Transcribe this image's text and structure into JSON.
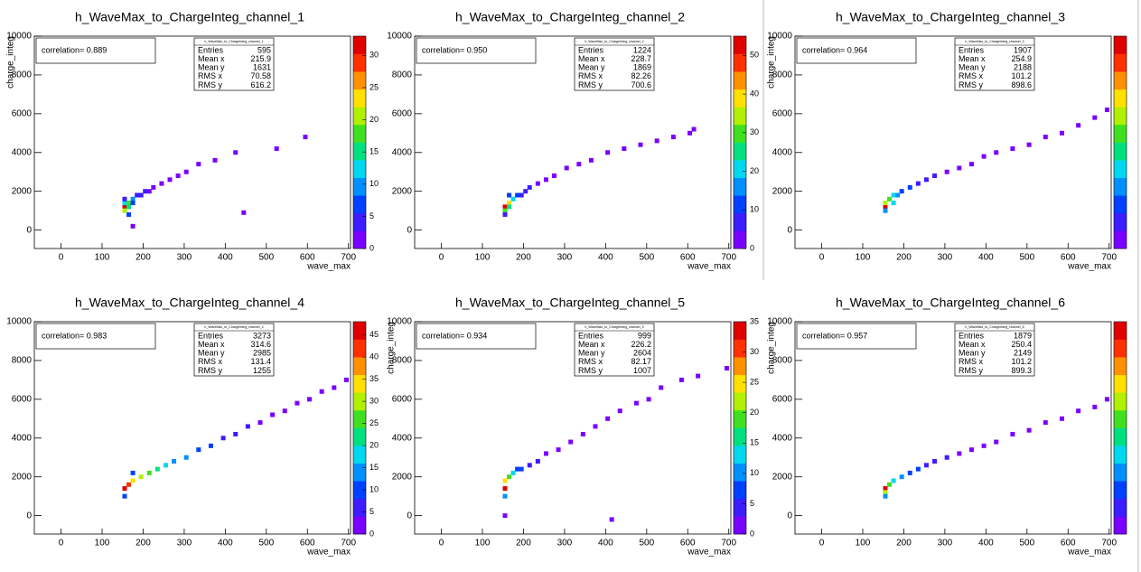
{
  "chart_data": [
    {
      "type": "heatmap",
      "title": "h_WaveMax_to_ChargeInteg_channel_1",
      "xlabel": "wave_max",
      "ylabel": "charge_integ",
      "annotation": "correlation= 0.889",
      "stats": {
        "title": "h_WaveMax_to_ChargeInteg_channel_1",
        "labels": [
          "Entries",
          "Mean x",
          "Mean y",
          "RMS x",
          "RMS y"
        ],
        "values": [
          595,
          215.9,
          1631,
          70.58,
          616.2
        ]
      },
      "xlim": [
        -65,
        705
      ],
      "ylim": [
        -950,
        10000
      ],
      "xticks": [
        0,
        100,
        200,
        300,
        400,
        500,
        600,
        700
      ],
      "yticks": [
        0,
        2000,
        4000,
        6000,
        8000,
        10000
      ],
      "zlim": [
        0,
        33
      ],
      "zticks": [
        0,
        5,
        10,
        15,
        20,
        25,
        30
      ],
      "x": [
        155,
        155,
        155,
        165,
        165,
        175,
        175,
        165,
        185,
        195,
        205,
        215,
        225,
        245,
        265,
        285,
        305,
        335,
        375,
        425,
        445,
        525,
        595,
        155,
        175
      ],
      "y": [
        1200,
        1000,
        1400,
        1400,
        1200,
        1600,
        1400,
        800,
        1800,
        1800,
        2000,
        2000,
        2200,
        2400,
        2600,
        2800,
        3000,
        3400,
        3600,
        4000,
        900,
        4200,
        4800,
        1600,
        200
      ],
      "z": [
        33,
        20,
        12,
        18,
        15,
        10,
        8,
        6,
        5,
        3,
        3,
        2,
        2,
        1,
        1,
        1,
        1,
        1,
        1,
        1,
        1,
        1,
        1,
        4,
        1
      ]
    },
    {
      "type": "heatmap",
      "title": "h_WaveMax_to_ChargeInteg_channel_2",
      "xlabel": "wave_max",
      "annotation": "correlation= 0.950",
      "stats": {
        "title": "h_WaveMax_to_ChargeInteg_channel_2",
        "labels": [
          "Entries",
          "Mean x",
          "Mean y",
          "RMS x",
          "RMS y"
        ],
        "values": [
          1224,
          228.7,
          1869,
          82.26,
          700.6
        ]
      },
      "xlim": [
        -65,
        705
      ],
      "ylim": [
        -950,
        10000
      ],
      "xticks": [
        0,
        100,
        200,
        300,
        400,
        500,
        600,
        700
      ],
      "yticks": [
        0,
        2000,
        4000,
        6000,
        8000,
        10000
      ],
      "zlim": [
        0,
        55
      ],
      "zticks": [
        0,
        10,
        20,
        30,
        40,
        50
      ],
      "x": [
        155,
        155,
        165,
        165,
        175,
        185,
        195,
        205,
        215,
        235,
        255,
        275,
        305,
        335,
        365,
        405,
        445,
        485,
        525,
        565,
        605,
        615,
        155,
        165
      ],
      "y": [
        1200,
        1000,
        1400,
        1200,
        1600,
        1800,
        1800,
        2000,
        2200,
        2400,
        2600,
        2800,
        3200,
        3400,
        3600,
        4000,
        4200,
        4400,
        4600,
        4800,
        5000,
        5200,
        800,
        1800
      ],
      "z": [
        55,
        30,
        40,
        25,
        20,
        12,
        8,
        6,
        5,
        3,
        2,
        2,
        1,
        1,
        1,
        1,
        1,
        1,
        1,
        1,
        1,
        1,
        8,
        10
      ]
    },
    {
      "type": "heatmap",
      "title": "h_WaveMax_to_ChargeInteg_channel_3",
      "xlabel": "wave_max",
      "ylabel": "charge_integ",
      "annotation": "correlation= 0.964",
      "stats": {
        "title": "h_WaveMax_to_ChargeInteg_channel_3",
        "labels": [
          "Entries",
          "Mean x",
          "Mean y",
          "RMS x",
          "RMS y"
        ],
        "values": [
          1907,
          254.9,
          2188,
          101.2,
          898.6
        ]
      },
      "xlim": [
        -65,
        705
      ],
      "ylim": [
        -950,
        10000
      ],
      "xticks": [
        0,
        100,
        200,
        300,
        400,
        500,
        600,
        700
      ],
      "yticks": [
        0,
        2000,
        4000,
        6000,
        8000,
        10000
      ],
      "zlim": [
        0,
        60
      ],
      "x": [
        155,
        155,
        165,
        175,
        185,
        195,
        215,
        235,
        255,
        275,
        305,
        335,
        365,
        395,
        425,
        465,
        505,
        545,
        585,
        625,
        665,
        695,
        155,
        175
      ],
      "y": [
        1200,
        1400,
        1600,
        1800,
        1800,
        2000,
        2200,
        2400,
        2600,
        2800,
        3000,
        3200,
        3400,
        3800,
        4000,
        4200,
        4400,
        4800,
        5000,
        5400,
        5800,
        6200,
        1000,
        1400
      ],
      "z": [
        60,
        35,
        30,
        22,
        15,
        12,
        10,
        8,
        6,
        5,
        4,
        3,
        3,
        2,
        2,
        2,
        1,
        1,
        1,
        1,
        1,
        1,
        15,
        20
      ]
    },
    {
      "type": "heatmap",
      "title": "h_WaveMax_to_ChargeInteg_channel_4",
      "xlabel": "wave_max",
      "annotation": "correlation= 0.983",
      "stats": {
        "title": "h_WaveMax_to_ChargeInteg_channel_4",
        "labels": [
          "Entries",
          "Mean x",
          "Mean y",
          "RMS x",
          "RMS y"
        ],
        "values": [
          3273,
          314.6,
          2985,
          131.4,
          1255
        ]
      },
      "xlim": [
        -65,
        705
      ],
      "ylim": [
        -950,
        10000
      ],
      "xticks": [
        0,
        100,
        200,
        300,
        400,
        500,
        600,
        700
      ],
      "yticks": [
        0,
        2000,
        4000,
        6000,
        8000,
        10000
      ],
      "zlim": [
        0,
        48
      ],
      "zticks": [
        0,
        5,
        10,
        15,
        20,
        25,
        30,
        35,
        40,
        45
      ],
      "x": [
        155,
        165,
        175,
        195,
        215,
        235,
        255,
        275,
        305,
        335,
        365,
        395,
        425,
        455,
        485,
        515,
        545,
        575,
        605,
        635,
        665,
        695,
        155,
        175
      ],
      "y": [
        1400,
        1600,
        1800,
        2000,
        2200,
        2400,
        2600,
        2800,
        3000,
        3400,
        3600,
        4000,
        4200,
        4600,
        4800,
        5200,
        5400,
        5800,
        6000,
        6400,
        6600,
        7000,
        1000,
        2200
      ],
      "z": [
        48,
        40,
        35,
        30,
        25,
        22,
        18,
        15,
        12,
        10,
        8,
        6,
        5,
        4,
        3,
        3,
        2,
        2,
        1,
        1,
        1,
        1,
        10,
        8
      ]
    },
    {
      "type": "heatmap",
      "title": "h_WaveMax_to_ChargeInteg_channel_5",
      "xlabel": "wave_max",
      "ylabel": "charge_integ",
      "annotation": "correlation= 0.934",
      "stats": {
        "title": "h_WaveMax_to_ChargeInteg_channel_5",
        "labels": [
          "Entries",
          "Mean x",
          "Mean y",
          "RMS x",
          "RMS y"
        ],
        "values": [
          999,
          226.2,
          2604,
          82.17,
          1007
        ]
      },
      "xlim": [
        -65,
        705
      ],
      "ylim": [
        -950,
        10000
      ],
      "xticks": [
        0,
        100,
        200,
        300,
        400,
        500,
        600,
        700
      ],
      "yticks": [
        0,
        2000,
        4000,
        6000,
        8000,
        10000
      ],
      "zlim": [
        0,
        35
      ],
      "zticks": [
        0,
        5,
        10,
        15,
        20,
        25,
        30,
        35
      ],
      "x": [
        155,
        155,
        165,
        175,
        185,
        195,
        215,
        235,
        255,
        285,
        315,
        345,
        375,
        405,
        435,
        475,
        505,
        535,
        585,
        625,
        695,
        155,
        415,
        155
      ],
      "y": [
        1400,
        1800,
        2000,
        2200,
        2400,
        2400,
        2600,
        2800,
        3200,
        3400,
        3800,
        4200,
        4600,
        5000,
        5400,
        5800,
        6000,
        6600,
        7000,
        7200,
        7600,
        0,
        -200,
        1000
      ],
      "z": [
        35,
        25,
        18,
        12,
        8,
        6,
        5,
        3,
        2,
        2,
        1,
        1,
        1,
        1,
        1,
        1,
        1,
        1,
        1,
        1,
        1,
        1,
        1,
        10
      ]
    },
    {
      "type": "heatmap",
      "title": "h_WaveMax_to_ChargeInteg_channel_6",
      "xlabel": "wave_max",
      "ylabel": "charge_integ",
      "annotation": "correlation= 0.957",
      "stats": {
        "title": "h_WaveMax_to_ChargeInteg_channel_6",
        "labels": [
          "Entries",
          "Mean x",
          "Mean y",
          "RMS x",
          "RMS y"
        ],
        "values": [
          1879,
          250.4,
          2149,
          101.2,
          899.3
        ]
      },
      "xlim": [
        -65,
        705
      ],
      "ylim": [
        -950,
        10000
      ],
      "xticks": [
        0,
        100,
        200,
        300,
        400,
        500,
        600,
        700
      ],
      "yticks": [
        0,
        2000,
        4000,
        6000,
        8000,
        10000
      ],
      "zlim": [
        0,
        60
      ],
      "x": [
        155,
        155,
        165,
        175,
        195,
        215,
        235,
        255,
        275,
        305,
        335,
        365,
        395,
        425,
        465,
        505,
        545,
        585,
        625,
        665,
        695,
        155
      ],
      "y": [
        1400,
        1200,
        1600,
        1800,
        2000,
        2200,
        2400,
        2600,
        2800,
        3000,
        3200,
        3400,
        3600,
        3800,
        4200,
        4400,
        4800,
        5000,
        5400,
        5600,
        6000,
        1000
      ],
      "z": [
        60,
        35,
        30,
        22,
        15,
        12,
        10,
        8,
        6,
        5,
        4,
        3,
        3,
        2,
        2,
        1,
        1,
        1,
        1,
        1,
        1,
        15
      ]
    }
  ],
  "palette": [
    "#7a00ff",
    "#3d1cff",
    "#0040ff",
    "#0090ff",
    "#00d8f0",
    "#00e080",
    "#40e020",
    "#b0f000",
    "#ffe000",
    "#ff9000",
    "#ff3000",
    "#e00000"
  ]
}
